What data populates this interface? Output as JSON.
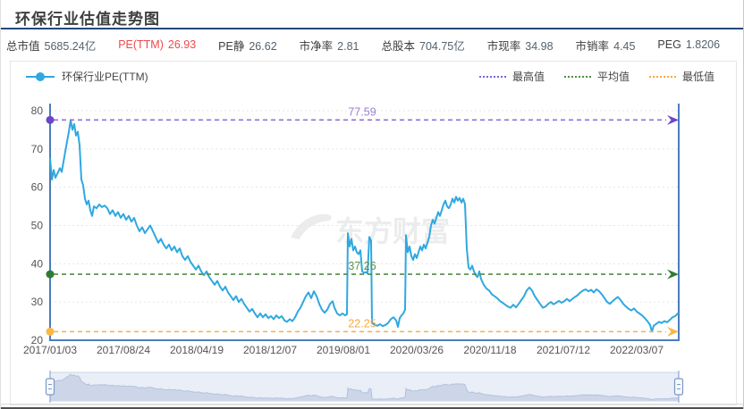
{
  "window": {
    "title": "环保行业估值走势图"
  },
  "theme": {
    "highlight_red": "#f0484a",
    "header_divider": "#24477c"
  },
  "stats": {
    "items": [
      {
        "label": "总市值",
        "value": "5685.24亿",
        "highlight": false
      },
      {
        "label": "PE(TTM)",
        "value": "26.93",
        "highlight": true
      },
      {
        "label": "PE静",
        "value": "26.62",
        "highlight": false
      },
      {
        "label": "市净率",
        "value": "2.81",
        "highlight": false
      },
      {
        "label": "总股本",
        "value": "704.75亿",
        "highlight": false
      },
      {
        "label": "市现率",
        "value": "34.98",
        "highlight": false
      },
      {
        "label": "市销率",
        "value": "4.45",
        "highlight": false
      },
      {
        "label": "PEG",
        "value": "1.8206",
        "highlight": false
      }
    ]
  },
  "legend": {
    "series": {
      "label": "环保行业PE(TTM)",
      "color": "#2fa8e0"
    },
    "markers": [
      {
        "id": "max",
        "label": "最高值",
        "color": "#7d62d3"
      },
      {
        "id": "avg",
        "label": "平均值",
        "color": "#4e8d43"
      },
      {
        "id": "min",
        "label": "最低值",
        "color": "#f7ab3e"
      }
    ]
  },
  "watermark": {
    "text": "东方财富"
  },
  "chart_data": {
    "type": "line",
    "title": "环保行业估值走势图",
    "series_name": "环保行业PE(TTM)",
    "ylabel": "PE(TTM)",
    "ylim": [
      20,
      80
    ],
    "y_ticks": [
      20,
      30,
      40,
      50,
      60,
      70,
      80
    ],
    "x_ticks": [
      "2017/01/03",
      "2017/08/24",
      "2018/04/19",
      "2018/12/07",
      "2019/08/01",
      "2020/03/26",
      "2020/11/18",
      "2021/07/12",
      "2022/03/07"
    ],
    "grid": true,
    "legend_position": "top",
    "markers": {
      "max": 77.59,
      "avg": 37.26,
      "min": 22.25
    },
    "colors": {
      "series": "#2fa8e0",
      "axis": "#4a7dbe",
      "grid": "#e5e5e5",
      "tick_text": "#555555",
      "max_line": "#8f6fd8",
      "max_dot": "#6b46c8",
      "max_label": "#9a7fd4",
      "avg_line": "#4e8d43",
      "avg_dot": "#2e7d32",
      "avg_label": "#5f9048",
      "min_line": "#fbae4a",
      "min_dot": "#fbb743",
      "min_label": "#f8a93c",
      "slider_track": "#e9eef7",
      "slider_border": "#ccd7ea",
      "slider_area": "#ccd6e8",
      "slider_edge": "#b3c2dc",
      "slider_handle": "#7b97c9"
    },
    "points": [
      [
        55,
        67.5
      ],
      [
        57,
        62
      ],
      [
        59,
        64.5
      ],
      [
        61,
        62.5
      ],
      [
        63,
        63.5
      ],
      [
        66,
        65
      ],
      [
        68,
        64
      ],
      [
        71,
        68
      ],
      [
        74,
        72
      ],
      [
        76,
        74.5
      ],
      [
        78,
        77.59
      ],
      [
        80,
        75
      ],
      [
        82,
        76.5
      ],
      [
        84,
        73.5
      ],
      [
        86,
        74.5
      ],
      [
        88,
        71
      ],
      [
        90,
        62
      ],
      [
        92,
        60.5
      ],
      [
        94,
        57
      ],
      [
        96,
        55.5
      ],
      [
        98,
        56.5
      ],
      [
        100,
        54
      ],
      [
        102,
        52.5
      ],
      [
        104,
        55
      ],
      [
        107,
        54.5
      ],
      [
        110,
        55.5
      ],
      [
        113,
        54.8
      ],
      [
        116,
        55.2
      ],
      [
        119,
        54.5
      ],
      [
        122,
        53
      ],
      [
        125,
        54
      ],
      [
        128,
        52.5
      ],
      [
        131,
        53.5
      ],
      [
        134,
        52
      ],
      [
        137,
        53
      ],
      [
        140,
        51.5
      ],
      [
        143,
        52.5
      ],
      [
        146,
        51
      ],
      [
        149,
        52
      ],
      [
        152,
        50
      ],
      [
        155,
        48.5
      ],
      [
        158,
        49.5
      ],
      [
        161,
        48
      ],
      [
        164,
        49
      ],
      [
        167,
        50
      ],
      [
        170,
        48.5
      ],
      [
        173,
        47
      ],
      [
        176,
        45.5
      ],
      [
        179,
        46.5
      ],
      [
        182,
        45
      ],
      [
        185,
        44
      ],
      [
        188,
        45
      ],
      [
        191,
        43.5
      ],
      [
        194,
        44.5
      ],
      [
        197,
        43
      ],
      [
        200,
        44
      ],
      [
        203,
        42
      ],
      [
        206,
        41
      ],
      [
        209,
        42
      ],
      [
        212,
        40.5
      ],
      [
        215,
        39.5
      ],
      [
        218,
        38.5
      ],
      [
        221,
        39.5
      ],
      [
        224,
        38
      ],
      [
        227,
        37
      ],
      [
        230,
        38
      ],
      [
        233,
        36.5
      ],
      [
        236,
        35.5
      ],
      [
        239,
        34.5
      ],
      [
        242,
        35.5
      ],
      [
        245,
        34
      ],
      [
        248,
        33
      ],
      [
        251,
        34
      ],
      [
        254,
        32.5
      ],
      [
        257,
        31.5
      ],
      [
        260,
        30.5
      ],
      [
        263,
        31.5
      ],
      [
        266,
        30
      ],
      [
        269,
        30.8
      ],
      [
        272,
        29.5
      ],
      [
        275,
        28.5
      ],
      [
        278,
        27.5
      ],
      [
        281,
        28.2
      ],
      [
        284,
        27
      ],
      [
        287,
        26
      ],
      [
        290,
        27
      ],
      [
        293,
        26
      ],
      [
        296,
        26.8
      ],
      [
        299,
        25.8
      ],
      [
        302,
        26.3
      ],
      [
        305,
        25.5
      ],
      [
        308,
        26.5
      ],
      [
        311,
        25.8
      ],
      [
        314,
        26.3
      ],
      [
        317,
        25.2
      ],
      [
        320,
        24.8
      ],
      [
        323,
        25.5
      ],
      [
        326,
        25
      ],
      [
        329,
        26
      ],
      [
        332,
        27.5
      ],
      [
        335,
        28.5
      ],
      [
        338,
        30
      ],
      [
        341,
        31.5
      ],
      [
        344,
        32.5
      ],
      [
        347,
        31
      ],
      [
        350,
        32.8
      ],
      [
        353,
        31.5
      ],
      [
        356,
        29.5
      ],
      [
        359,
        28
      ],
      [
        362,
        27.2
      ],
      [
        365,
        28
      ],
      [
        368,
        29.5
      ],
      [
        371,
        30.2
      ],
      [
        373,
        28.5
      ],
      [
        376,
        27
      ],
      [
        379,
        26.5
      ],
      [
        382,
        27
      ],
      [
        385,
        26.5
      ],
      [
        387,
        26.8
      ],
      [
        388,
        48
      ],
      [
        390,
        44.5
      ],
      [
        392,
        46.5
      ],
      [
        394,
        43.5
      ],
      [
        396,
        44.5
      ],
      [
        398,
        43
      ],
      [
        400,
        42.5
      ],
      [
        402,
        43.5
      ],
      [
        404,
        38
      ],
      [
        406,
        37.6
      ],
      [
        408,
        37.8
      ],
      [
        410,
        37.5
      ],
      [
        412,
        47
      ],
      [
        414,
        46
      ],
      [
        415,
        24.5
      ],
      [
        418,
        24
      ],
      [
        421,
        23.8
      ],
      [
        424,
        24.2
      ],
      [
        427,
        23.7
      ],
      [
        430,
        24
      ],
      [
        433,
        24.5
      ],
      [
        436,
        25.5
      ],
      [
        439,
        26
      ],
      [
        442,
        25.2
      ],
      [
        444,
        23.5
      ],
      [
        446,
        25.8
      ],
      [
        448,
        26.5
      ],
      [
        450,
        27
      ],
      [
        452,
        28
      ],
      [
        453,
        47.5
      ],
      [
        455,
        43
      ],
      [
        457,
        44.5
      ],
      [
        459,
        42
      ],
      [
        461,
        41
      ],
      [
        463,
        42.5
      ],
      [
        465,
        41.5
      ],
      [
        467,
        43
      ],
      [
        469,
        44.5
      ],
      [
        471,
        43.5
      ],
      [
        473,
        45
      ],
      [
        475,
        44
      ],
      [
        477,
        45.5
      ],
      [
        479,
        47
      ],
      [
        481,
        50
      ],
      [
        483,
        51.5
      ],
      [
        485,
        50.5
      ],
      [
        487,
        52
      ],
      [
        489,
        53.5
      ],
      [
        491,
        52.5
      ],
      [
        493,
        54
      ],
      [
        495,
        55.5
      ],
      [
        497,
        56.5
      ],
      [
        499,
        55
      ],
      [
        501,
        54.5
      ],
      [
        503,
        55.5
      ],
      [
        505,
        57
      ],
      [
        507,
        56
      ],
      [
        509,
        57.5
      ],
      [
        511,
        56.5
      ],
      [
        513,
        57.2
      ],
      [
        515,
        56
      ],
      [
        517,
        57
      ],
      [
        519,
        55.5
      ],
      [
        521,
        44
      ],
      [
        523,
        39
      ],
      [
        525,
        38.5
      ],
      [
        527,
        39.5
      ],
      [
        529,
        38
      ],
      [
        531,
        37
      ],
      [
        533,
        36.5
      ],
      [
        535,
        38
      ],
      [
        537,
        36
      ],
      [
        540,
        34.5
      ],
      [
        543,
        33.5
      ],
      [
        546,
        33
      ],
      [
        549,
        32
      ],
      [
        552,
        31.5
      ],
      [
        555,
        31
      ],
      [
        558,
        30.3
      ],
      [
        561,
        29.8
      ],
      [
        564,
        29.3
      ],
      [
        567,
        28.8
      ],
      [
        570,
        28.5
      ],
      [
        573,
        29.3
      ],
      [
        576,
        28.6
      ],
      [
        579,
        29.5
      ],
      [
        582,
        30.5
      ],
      [
        585,
        31.5
      ],
      [
        588,
        33
      ],
      [
        591,
        33.8
      ],
      [
        594,
        33
      ],
      [
        597,
        31.5
      ],
      [
        600,
        30.5
      ],
      [
        603,
        29.5
      ],
      [
        606,
        28.5
      ],
      [
        609,
        28.8
      ],
      [
        612,
        29.5
      ],
      [
        615,
        30
      ],
      [
        618,
        29.4
      ],
      [
        621,
        29.8
      ],
      [
        624,
        30.3
      ],
      [
        627,
        29.8
      ],
      [
        630,
        30.2
      ],
      [
        633,
        30.8
      ],
      [
        636,
        30.2
      ],
      [
        639,
        30.8
      ],
      [
        642,
        31.3
      ],
      [
        645,
        31.8
      ],
      [
        648,
        32.5
      ],
      [
        651,
        33
      ],
      [
        654,
        33.3
      ],
      [
        657,
        32.8
      ],
      [
        660,
        33.2
      ],
      [
        663,
        32.5
      ],
      [
        666,
        33.3
      ],
      [
        669,
        32.8
      ],
      [
        672,
        32
      ],
      [
        675,
        31
      ],
      [
        678,
        30
      ],
      [
        681,
        29.5
      ],
      [
        684,
        30.2
      ],
      [
        687,
        30.8
      ],
      [
        690,
        31.3
      ],
      [
        693,
        30.5
      ],
      [
        696,
        29.5
      ],
      [
        699,
        28.8
      ],
      [
        702,
        28.2
      ],
      [
        705,
        27.8
      ],
      [
        708,
        28.3
      ],
      [
        711,
        27.5
      ],
      [
        714,
        27
      ],
      [
        717,
        26.5
      ],
      [
        720,
        25.8
      ],
      [
        723,
        25
      ],
      [
        726,
        24
      ],
      [
        728,
        22.25
      ],
      [
        730,
        23.8
      ],
      [
        733,
        24.3
      ],
      [
        736,
        24.8
      ],
      [
        739,
        24.5
      ],
      [
        742,
        25
      ],
      [
        745,
        24.7
      ],
      [
        748,
        25.3
      ],
      [
        751,
        26
      ],
      [
        754,
        26.3
      ],
      [
        757,
        27
      ]
    ]
  }
}
